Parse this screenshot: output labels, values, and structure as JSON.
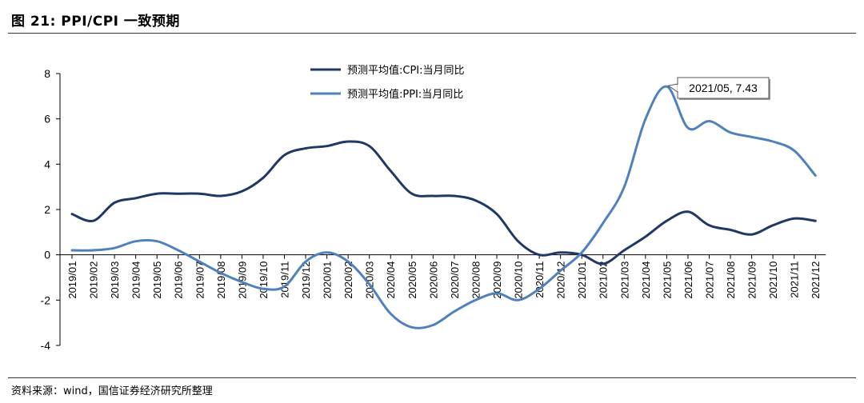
{
  "figure": {
    "title": "图 21: PPI/CPI 一致预期",
    "source": "资料来源：wind，国信证券经济研究所整理"
  },
  "chart_data": {
    "type": "line",
    "title": "",
    "xlabel": "",
    "ylabel": "",
    "ylim": [
      -4,
      8
    ],
    "yticks": [
      -4,
      -2,
      0,
      2,
      4,
      6,
      8
    ],
    "grid": false,
    "legend_position": "top-center",
    "categories": [
      "2019/01",
      "2019/02",
      "2019/03",
      "2019/04",
      "2019/05",
      "2019/06",
      "2019/07",
      "2019/08",
      "2019/09",
      "2019/10",
      "2019/11",
      "2019/12",
      "2020/01",
      "2020/02",
      "2020/03",
      "2020/04",
      "2020/05",
      "2020/06",
      "2020/07",
      "2020/08",
      "2020/09",
      "2020/10",
      "2020/11",
      "2020/12",
      "2021/01",
      "2021/02",
      "2021/03",
      "2021/04",
      "2021/05",
      "2021/06",
      "2021/07",
      "2021/08",
      "2021/09",
      "2021/10",
      "2021/11",
      "2021/12"
    ],
    "series": [
      {
        "name": "预测平均值:CPI:当月同比",
        "color": "#1f3864",
        "values": [
          1.8,
          1.5,
          2.3,
          2.5,
          2.7,
          2.7,
          2.7,
          2.6,
          2.8,
          3.4,
          4.4,
          4.7,
          4.8,
          5.0,
          4.8,
          3.7,
          2.7,
          2.6,
          2.6,
          2.4,
          1.8,
          0.6,
          0.0,
          0.1,
          0.0,
          -0.4,
          0.2,
          0.8,
          1.5,
          1.9,
          1.3,
          1.1,
          0.9,
          1.3,
          1.6,
          1.5
        ]
      },
      {
        "name": "预测平均值:PPI:当月同比",
        "color": "#4f81bd",
        "values": [
          0.2,
          0.2,
          0.3,
          0.6,
          0.6,
          0.2,
          -0.3,
          -0.8,
          -1.2,
          -1.5,
          -1.4,
          -0.3,
          0.1,
          -0.3,
          -1.3,
          -2.6,
          -3.2,
          -3.1,
          -2.5,
          -2.0,
          -1.7,
          -2.0,
          -1.5,
          -0.7,
          0.1,
          1.4,
          3.0,
          6.0,
          7.43,
          5.6,
          5.9,
          5.4,
          5.2,
          5.0,
          4.6,
          3.5
        ]
      }
    ],
    "annotations": [
      {
        "series": 1,
        "category": "2021/05",
        "text": "2021/05, 7.43"
      }
    ]
  }
}
